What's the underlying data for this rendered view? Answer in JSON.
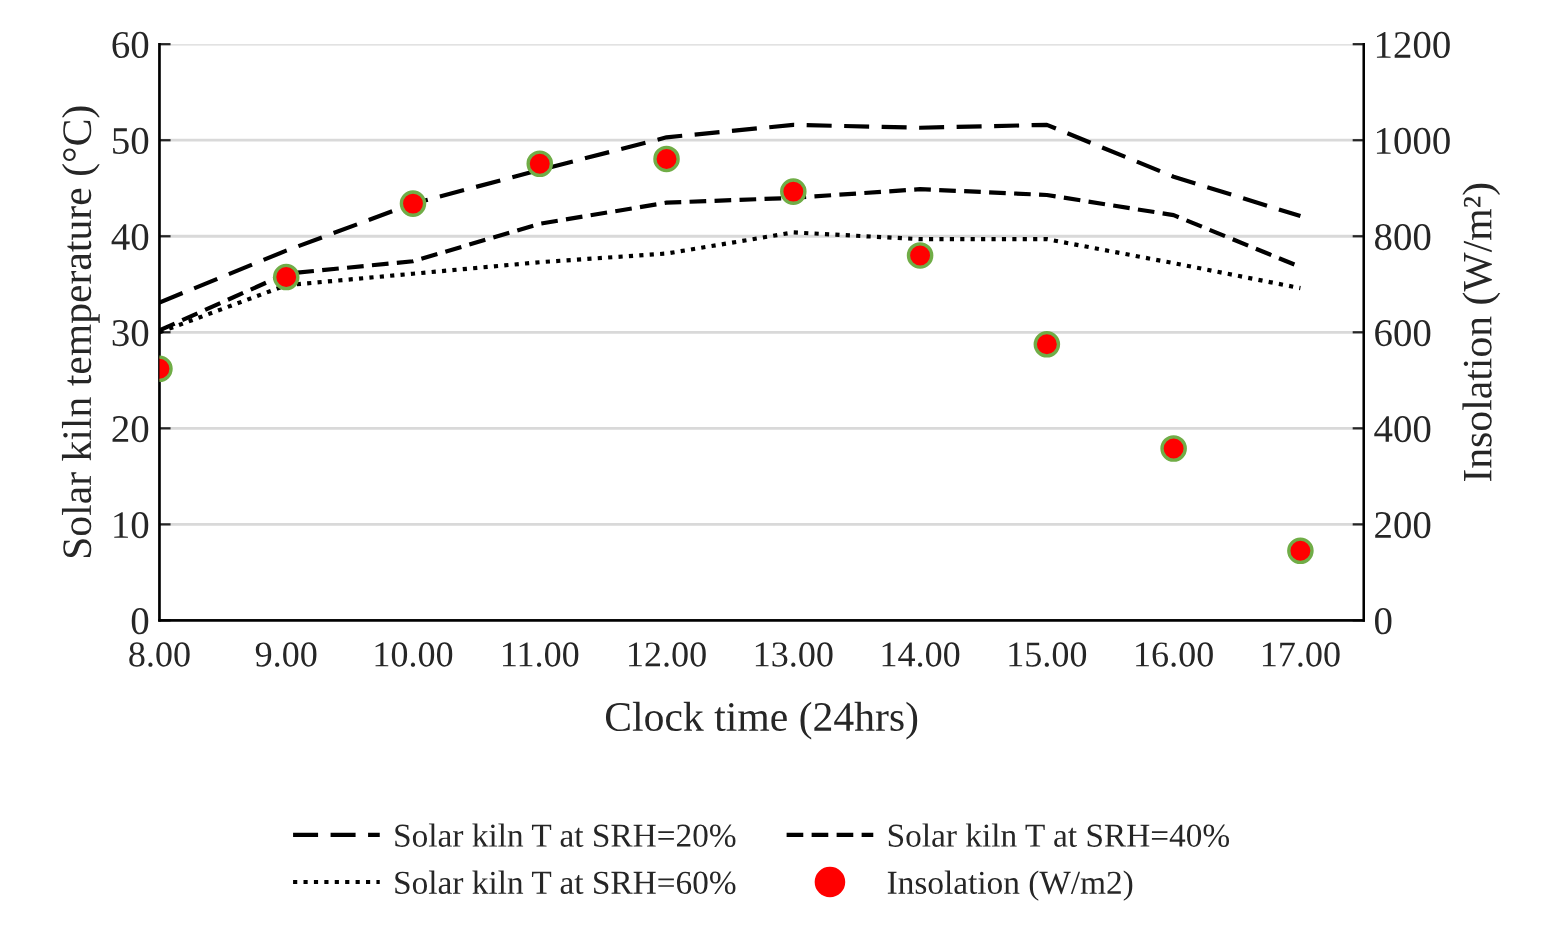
{
  "chart_data": {
    "type": "line",
    "xlabel": "Clock time (24hrs)",
    "ylabel": "Solar kiln temperature (°C)",
    "y2label": "Insolation (W/m²)",
    "categories": [
      "8.00",
      "9.00",
      "10.00",
      "11.00",
      "12.00",
      "13.00",
      "14.00",
      "15.00",
      "16.00",
      "17.00"
    ],
    "series": [
      {
        "name": "Solar kiln T at SRH=20%",
        "color": "#000000",
        "line_style": "dashed",
        "values": [
          33.1,
          38.5,
          43.4,
          46.9,
          50.3,
          51.6,
          51.3,
          51.6,
          46.2,
          42.1
        ]
      },
      {
        "name": "Solar kiln T at SRH=40%",
        "color": "#000000",
        "line_style": "dashed",
        "values": [
          30.2,
          36.1,
          37.4,
          41.3,
          43.5,
          44.0,
          44.9,
          44.3,
          42.2,
          36.8
        ]
      },
      {
        "name": "Solar kiln T at SRH=60%",
        "color": "#000000",
        "line_style": "dotted",
        "values": [
          30.0,
          34.9,
          36.1,
          37.3,
          38.2,
          40.4,
          39.7,
          39.7,
          37.2,
          34.6
        ]
      },
      {
        "name": "Insolation (W/m2)",
        "type": "scatter",
        "axis": "y2",
        "color": "#ff0000",
        "marker": "circle",
        "values": [
          524,
          715,
          868,
          951,
          961,
          893,
          760,
          575,
          358,
          145
        ]
      }
    ],
    "ylim": [
      0,
      60
    ],
    "yticks": [
      0,
      10,
      20,
      30,
      40,
      50,
      60
    ],
    "y2lim": [
      0,
      1200
    ],
    "y2ticks": [
      0,
      200,
      400,
      600,
      800,
      1000,
      1200
    ],
    "grid": "y",
    "legend": "bottom"
  }
}
